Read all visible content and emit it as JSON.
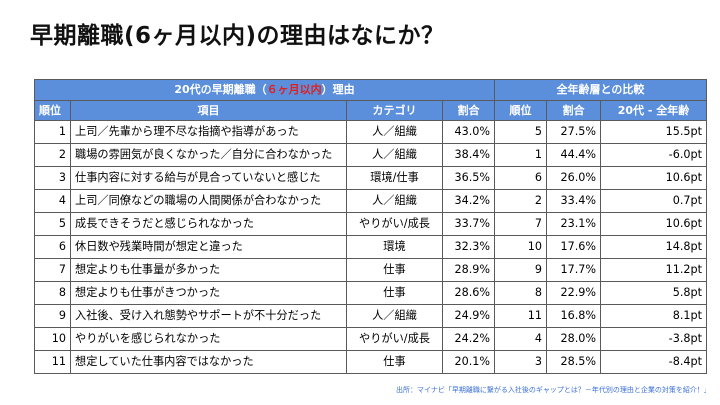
{
  "page_title": "早期離職(6ヶ月以内)の理由はなにか？",
  "table": {
    "group_left_prefix": "20代の早期離職（",
    "group_left_highlight": "６ヶ月以内",
    "group_left_suffix": "）理由",
    "group_right": "全年齢層との比較",
    "columns": [
      "順位",
      "項目",
      "カテゴリ",
      "割合",
      "順位",
      "割合",
      "20代 - 全年齢"
    ],
    "rows": [
      {
        "rank": "1",
        "item": "上司／先輩から理不尽な指摘や指導があった",
        "category": "人／組織",
        "pct": "43.0%",
        "all_rank": "5",
        "all_pct": "27.5%",
        "diff": "15.5pt"
      },
      {
        "rank": "2",
        "item": "職場の雰囲気が良くなかった／自分に合わなかった",
        "category": "人／組織",
        "pct": "38.4%",
        "all_rank": "1",
        "all_pct": "44.4%",
        "diff": "-6.0pt"
      },
      {
        "rank": "3",
        "item": "仕事内容に対する給与が見合っていないと感じた",
        "category": "環境/仕事",
        "pct": "36.5%",
        "all_rank": "6",
        "all_pct": "26.0%",
        "diff": "10.6pt"
      },
      {
        "rank": "4",
        "item": "上司／同僚などの職場の人間関係が合わなかった",
        "category": "人／組織",
        "pct": "34.2%",
        "all_rank": "2",
        "all_pct": "33.4%",
        "diff": "0.7pt"
      },
      {
        "rank": "5",
        "item": "成長できそうだと感じられなかった",
        "category": "やりがい/成長",
        "pct": "33.7%",
        "all_rank": "7",
        "all_pct": "23.1%",
        "diff": "10.6pt"
      },
      {
        "rank": "6",
        "item": "休日数や残業時間が想定と違った",
        "category": "環境",
        "pct": "32.3%",
        "all_rank": "10",
        "all_pct": "17.6%",
        "diff": "14.8pt"
      },
      {
        "rank": "7",
        "item": "想定よりも仕事量が多かった",
        "category": "仕事",
        "pct": "28.9%",
        "all_rank": "9",
        "all_pct": "17.7%",
        "diff": "11.2pt"
      },
      {
        "rank": "8",
        "item": "想定よりも仕事がきつかった",
        "category": "仕事",
        "pct": "28.6%",
        "all_rank": "8",
        "all_pct": "22.9%",
        "diff": "5.8pt"
      },
      {
        "rank": "9",
        "item": "入社後、受け入れ態勢やサポートが不十分だった",
        "category": "人／組織",
        "pct": "24.9%",
        "all_rank": "11",
        "all_pct": "16.8%",
        "diff": "8.1pt"
      },
      {
        "rank": "10",
        "item": "やりがいを感じられなかった",
        "category": "やりがい/成長",
        "pct": "24.2%",
        "all_rank": "4",
        "all_pct": "28.0%",
        "diff": "-3.8pt"
      },
      {
        "rank": "11",
        "item": "想定していた仕事内容ではなかった",
        "category": "仕事",
        "pct": "20.1%",
        "all_rank": "3",
        "all_pct": "28.5%",
        "diff": "-8.4pt"
      }
    ]
  },
  "source": "出所：マイナビ「早期離職に繋がる入社後のギャップとは？－年代別の理由と企業の対策を紹介！」",
  "colors": {
    "header_bg": "#5b8edb",
    "highlight": "#e02020",
    "source_link": "#3b6fd6"
  }
}
